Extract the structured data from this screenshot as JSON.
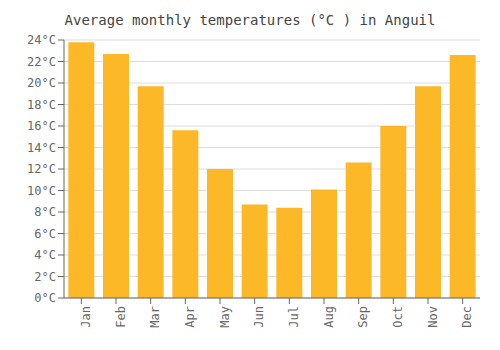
{
  "chart_data": {
    "type": "bar",
    "title": "Average monthly temperatures (°C ) in Anguil",
    "categories": [
      "Jan",
      "Feb",
      "Mar",
      "Apr",
      "May",
      "Jun",
      "Jul",
      "Aug",
      "Sep",
      "Oct",
      "Nov",
      "Dec"
    ],
    "values": [
      23.8,
      22.7,
      19.7,
      15.6,
      12.0,
      8.7,
      8.4,
      10.1,
      12.6,
      16.0,
      19.7,
      22.6
    ],
    "color": "#FDB827",
    "ylim": [
      0,
      24
    ],
    "yticks": [
      {
        "value": 0,
        "label": "0°C"
      },
      {
        "value": 2,
        "label": "2°C"
      },
      {
        "value": 4,
        "label": "4°C"
      },
      {
        "value": 6,
        "label": "6°C"
      },
      {
        "value": 8,
        "label": "8°C"
      },
      {
        "value": 10,
        "label": "10°C"
      },
      {
        "value": 12,
        "label": "12°C"
      },
      {
        "value": 14,
        "label": "14°C"
      },
      {
        "value": 16,
        "label": "16°C"
      },
      {
        "value": 18,
        "label": "18°C"
      },
      {
        "value": 20,
        "label": "20°C"
      },
      {
        "value": 22,
        "label": "22°C"
      },
      {
        "value": 24,
        "label": "24°C"
      }
    ],
    "grid": true
  }
}
